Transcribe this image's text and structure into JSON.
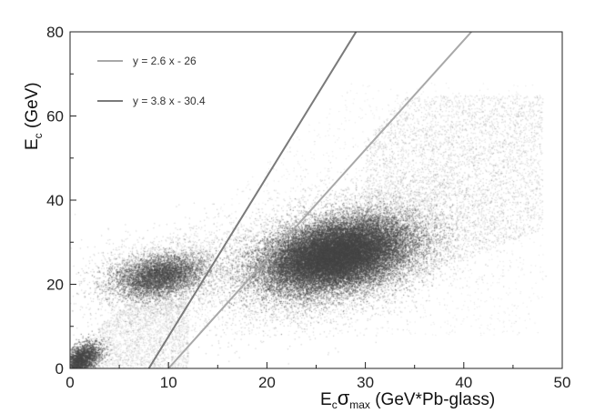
{
  "chart_data": {
    "type": "scatter",
    "title": "",
    "xlabel": {
      "main": "E",
      "sub1": "c",
      "sym": "σ",
      "sub2": "max",
      "rest": "  (GeV*Pb-glass)"
    },
    "ylabel": {
      "main": "E",
      "sub": "c",
      "rest": "  (GeV)"
    },
    "xlim": [
      0,
      50
    ],
    "ylim": [
      0,
      80
    ],
    "xticks": [
      0,
      10,
      20,
      30,
      40,
      50
    ],
    "yticks": [
      0,
      20,
      40,
      60,
      80
    ],
    "grid": false,
    "legend_position": "top-left",
    "lines": [
      {
        "label": "y = 2.6 x - 26",
        "slope": 2.6,
        "intercept": -26,
        "color": "#a8a8a8"
      },
      {
        "label": "y = 3.8 x - 30.4",
        "slope": 3.8,
        "intercept": -30.4,
        "color": "#7a7a7a"
      }
    ],
    "density_clusters": [
      {
        "name": "",
        "x_center": 27,
        "y_center": 27,
        "x_range": [
          19,
          35
        ],
        "y_range": [
          20,
          37
        ],
        "density": "very high"
      },
      {
        "name": "",
        "x_center": 9,
        "y_center": 22,
        "x_range": [
          4,
          14
        ],
        "y_range": [
          15,
          29
        ],
        "density": "high"
      },
      {
        "name": "",
        "x_center": 1,
        "y_center": 2,
        "x_range": [
          0,
          4
        ],
        "y_range": [
          0,
          7
        ],
        "density": "high"
      }
    ],
    "scatter_color": "#555555"
  }
}
